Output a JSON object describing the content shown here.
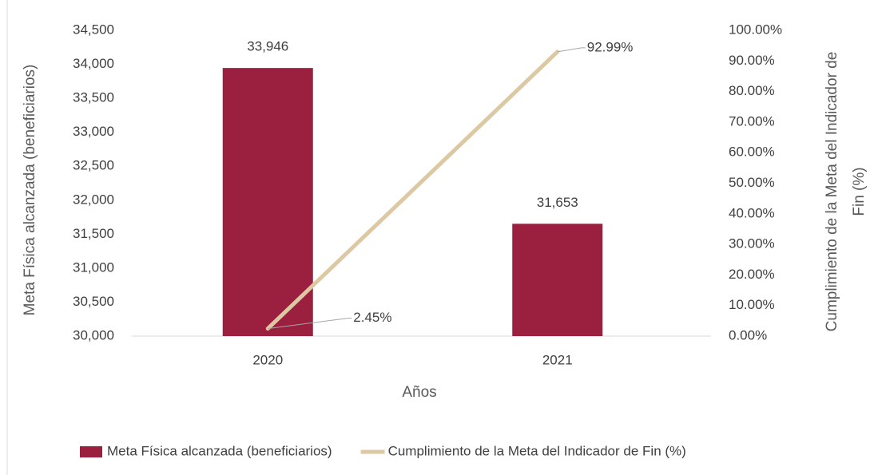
{
  "chart_data": {
    "type": "bar_line",
    "x_label": "Años",
    "y_label": "Meta Física alcanzada (beneficiarios)",
    "y2_label": [
      "Cumplimiento de la Meta del Indicador de",
      "Fin (%)"
    ],
    "categories": [
      "2020",
      "2021"
    ],
    "series": [
      {
        "name": "Meta Física alcanzada (beneficiarios)",
        "type": "bar",
        "color": "#9b1f3f",
        "values": [
          33946,
          31653
        ],
        "value_labels": [
          "33,946",
          "31,653"
        ]
      },
      {
        "name": "Cumplimiento de la Meta del Indicador de Fin (%)",
        "type": "line",
        "axis": "y2",
        "color": "#dcc9a3",
        "values": [
          2.45,
          92.99
        ],
        "value_labels": [
          "2.45%",
          "92.99%"
        ]
      }
    ],
    "ylim": [
      30000,
      34500
    ],
    "yticks": [
      {
        "value": 30000,
        "label": "30,000"
      },
      {
        "value": 30500,
        "label": "30,500"
      },
      {
        "value": 31000,
        "label": "31,000"
      },
      {
        "value": 31500,
        "label": "31,500"
      },
      {
        "value": 32000,
        "label": "32,000"
      },
      {
        "value": 32500,
        "label": "32,500"
      },
      {
        "value": 33000,
        "label": "33,000"
      },
      {
        "value": 33500,
        "label": "33,500"
      },
      {
        "value": 34000,
        "label": "34,000"
      },
      {
        "value": 34500,
        "label": "34,500"
      }
    ],
    "y2lim": [
      0,
      100
    ],
    "y2ticks": [
      {
        "value": 0,
        "label": "0.00%"
      },
      {
        "value": 10,
        "label": "10.00%"
      },
      {
        "value": 20,
        "label": "20.00%"
      },
      {
        "value": 30,
        "label": "30.00%"
      },
      {
        "value": 40,
        "label": "40.00%"
      },
      {
        "value": 50,
        "label": "50.00%"
      },
      {
        "value": 60,
        "label": "60.00%"
      },
      {
        "value": 70,
        "label": "70.00%"
      },
      {
        "value": 80,
        "label": "80.00%"
      },
      {
        "value": 90,
        "label": "90.00%"
      },
      {
        "value": 100,
        "label": "100.00%"
      }
    ]
  }
}
